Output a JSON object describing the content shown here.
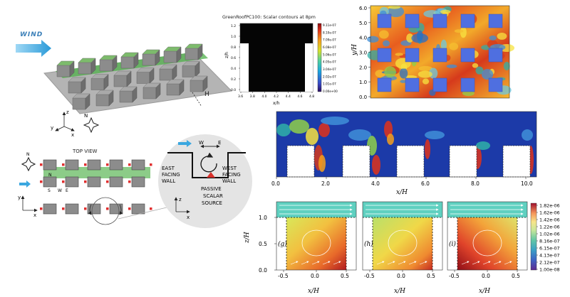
{
  "wind_label": "WIND",
  "axes_3d": {
    "z": "z",
    "y": "y",
    "x": "x",
    "n": "N",
    "h": "H"
  },
  "contour_plot": {
    "title": "GreenRoofPC100: Scalar contours at 8pm",
    "ylabel": "z/h",
    "xlabel": "x/h",
    "xticks": [
      "3.6",
      "3.8",
      "4.0",
      "4.2",
      "4.4",
      "4.6",
      "4.8"
    ],
    "yticks": [
      "1.2",
      "1.0",
      "0.8",
      "0.6",
      "0.4",
      "0.2",
      "0.0"
    ],
    "colorbar_ticks": [
      "9.11e-07",
      "8.10e-07",
      "7.09e-07",
      "6.08e-07",
      "5.06e-07",
      "4.05e-07",
      "3.04e-07",
      "2.02e-07",
      "1.01e-07",
      "0.00e+00"
    ]
  },
  "plan_plot": {
    "ylabel": "y/H",
    "yticks": [
      "6.0",
      "5.0",
      "4.0",
      "3.0",
      "2.0",
      "1.0",
      "0.0"
    ]
  },
  "section_plot": {
    "xlabel": "x/H",
    "xticks": [
      "0.0",
      "2.0",
      "4.0",
      "6.0",
      "8.0",
      "10.0"
    ]
  },
  "top_view": {
    "title": "TOP VIEW",
    "north": "N",
    "n_label": "N",
    "s_label": "S",
    "w_label": "W",
    "e_label": "E",
    "y_label": "y",
    "x_label": "x"
  },
  "canyon_detail": {
    "w_label": "W",
    "e_label": "E",
    "east_wall": [
      "EAST",
      "FACING",
      "WALL"
    ],
    "west_wall": [
      "WEST",
      "FACING",
      "WALL"
    ],
    "source": [
      "PASSIVE",
      "SCALAR",
      "SOURCE"
    ],
    "z_label": "z",
    "x_label": "x"
  },
  "bottom_panels": {
    "ylabel": "z/H",
    "yticks": [
      "1.0",
      "0.5",
      "0.0"
    ],
    "xticks": [
      "-0.5",
      "0.0",
      "0.5"
    ],
    "xlabel": "x/H",
    "panel_labels": [
      "(g)",
      "(h)",
      "(i)"
    ],
    "colorbar_ticks": [
      "1.82e-06",
      "1.62e-06",
      "1.42e-06",
      "1.22e-06",
      "1.02e-06",
      "8.16e-07",
      "6.15e-07",
      "4.13e-07",
      "2.12e-07",
      "1.00e-08"
    ]
  }
}
